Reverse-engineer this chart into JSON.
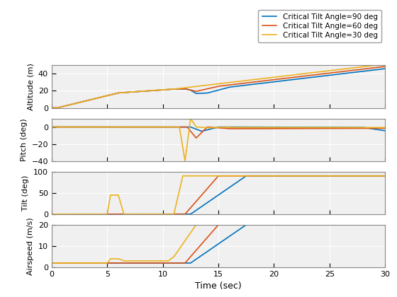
{
  "legend_labels": [
    "Critical Tilt Angle=90 deg",
    "Critical Tilt Angle=60 deg",
    "Critical Tilt Angle=30 deg"
  ],
  "line_colors": [
    "#0072BD",
    "#D95319",
    "#EDB120"
  ],
  "xlim": [
    0,
    30
  ],
  "subplot_ylabels": [
    "Altitude (m)",
    "Pitch (deg)",
    "Tilt (deg)",
    "Airspeed (m/s)"
  ],
  "xlabel": "Time (sec)",
  "alt_ylim": [
    0,
    50
  ],
  "alt_yticks": [
    0,
    20,
    40
  ],
  "pitch_ylim": [
    -40,
    10
  ],
  "pitch_yticks": [
    -40,
    -20,
    0
  ],
  "tilt_ylim": [
    0,
    100
  ],
  "tilt_yticks": [
    0,
    50,
    100
  ],
  "airspeed_ylim": [
    0,
    20
  ],
  "airspeed_yticks": [
    0,
    10,
    20
  ],
  "xticks": [
    0,
    5,
    10,
    15,
    20,
    25,
    30
  ],
  "axes_bg": "#F0F0F0",
  "background_color": "#FFFFFF",
  "grid_color": "#FFFFFF",
  "lw": 1.2
}
